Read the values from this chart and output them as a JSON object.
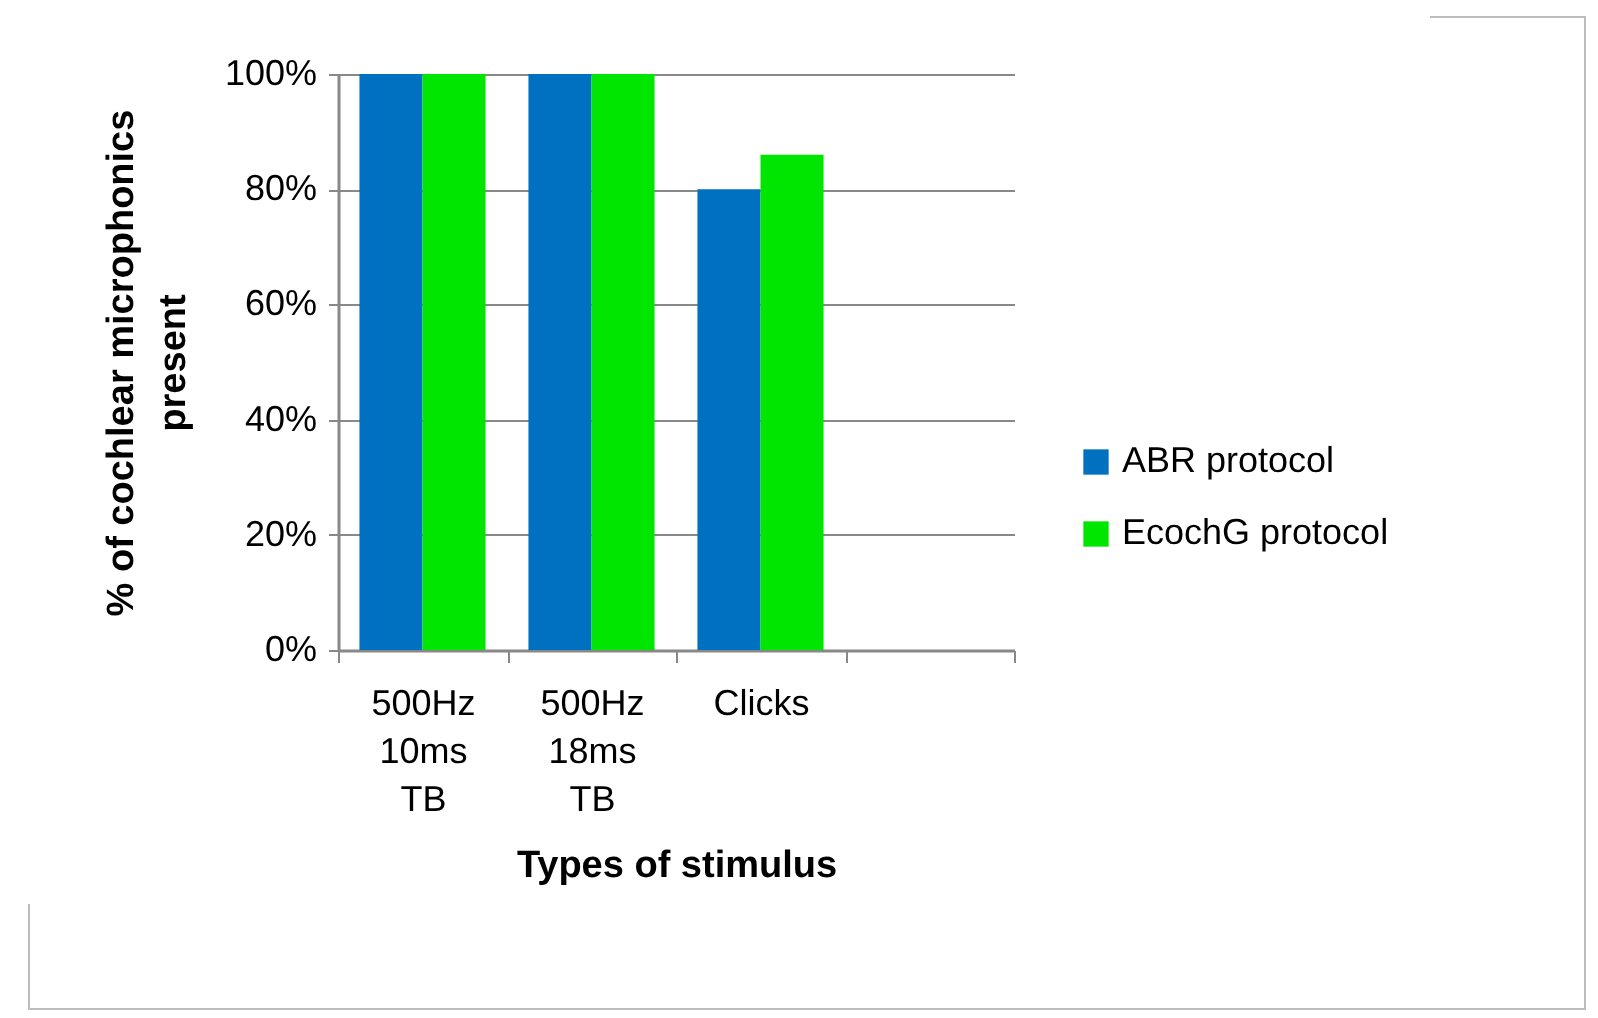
{
  "chart_data": {
    "type": "bar",
    "xlabel": "Types of stimulus",
    "ylabel": "% of cochlear microphonics present",
    "categories": [
      "500Hz 10ms TB",
      "500Hz 18ms TB",
      "Clicks",
      null
    ],
    "series": [
      {
        "name": "ABR protocol",
        "color": "#0070c0",
        "values": [
          100,
          100,
          80,
          null
        ]
      },
      {
        "name": "EcochG protocol",
        "color": "#00e600",
        "values": [
          100,
          100,
          86,
          null
        ]
      }
    ],
    "ylim": [
      0,
      100
    ],
    "yticks": [
      {
        "value": 0,
        "label": "0%"
      },
      {
        "value": 20,
        "label": "20%"
      },
      {
        "value": 40,
        "label": "40%"
      },
      {
        "value": 60,
        "label": "60%"
      },
      {
        "value": 80,
        "label": "80%"
      },
      {
        "value": 100,
        "label": "100%"
      }
    ],
    "grid": "y",
    "legend": "right"
  }
}
